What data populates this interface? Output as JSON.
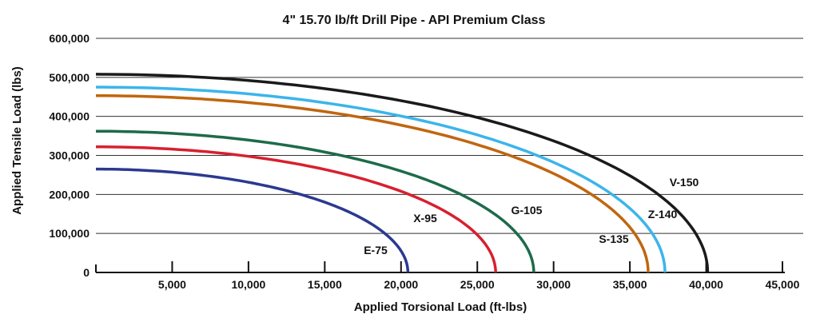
{
  "chart_data": {
    "type": "line",
    "title": "4\" 15.70 lb/ft Drill Pipe - API Premium Class",
    "xlabel": "Applied Torsional Load (ft-lbs)",
    "ylabel": "Applied Tensile Load (lbs)",
    "xlim": [
      0,
      45000
    ],
    "ylim": [
      0,
      600000
    ],
    "xticks": [
      5000,
      10000,
      15000,
      20000,
      25000,
      30000,
      35000,
      40000,
      45000
    ],
    "xtick_labels": [
      "5,000",
      "10,000",
      "15,000",
      "20,000",
      "25,000",
      "30,000",
      "35,000",
      "40,000",
      "45,000"
    ],
    "yticks": [
      0,
      100000,
      200000,
      300000,
      400000,
      500000,
      600000
    ],
    "ytick_labels": [
      "0",
      "100,000",
      "200,000",
      "300,000",
      "400,000",
      "500,000",
      "600,000"
    ],
    "grid": "horizontal",
    "series": [
      {
        "name": "E-75",
        "max_tensile": 265000,
        "max_torsion": 20450,
        "color": "#2b3990"
      },
      {
        "name": "X-95",
        "max_tensile": 322000,
        "max_torsion": 26200,
        "color": "#d7202f"
      },
      {
        "name": "G-105",
        "max_tensile": 362000,
        "max_torsion": 28700,
        "color": "#1d6b4a"
      },
      {
        "name": "S-135",
        "max_tensile": 453000,
        "max_torsion": 36200,
        "color": "#c0660f"
      },
      {
        "name": "Z-140",
        "max_tensile": 475000,
        "max_torsion": 37300,
        "color": "#3bb5ea"
      },
      {
        "name": "V-150",
        "max_tensile": 508000,
        "max_torsion": 40100,
        "color": "#1a1a1a"
      }
    ]
  }
}
